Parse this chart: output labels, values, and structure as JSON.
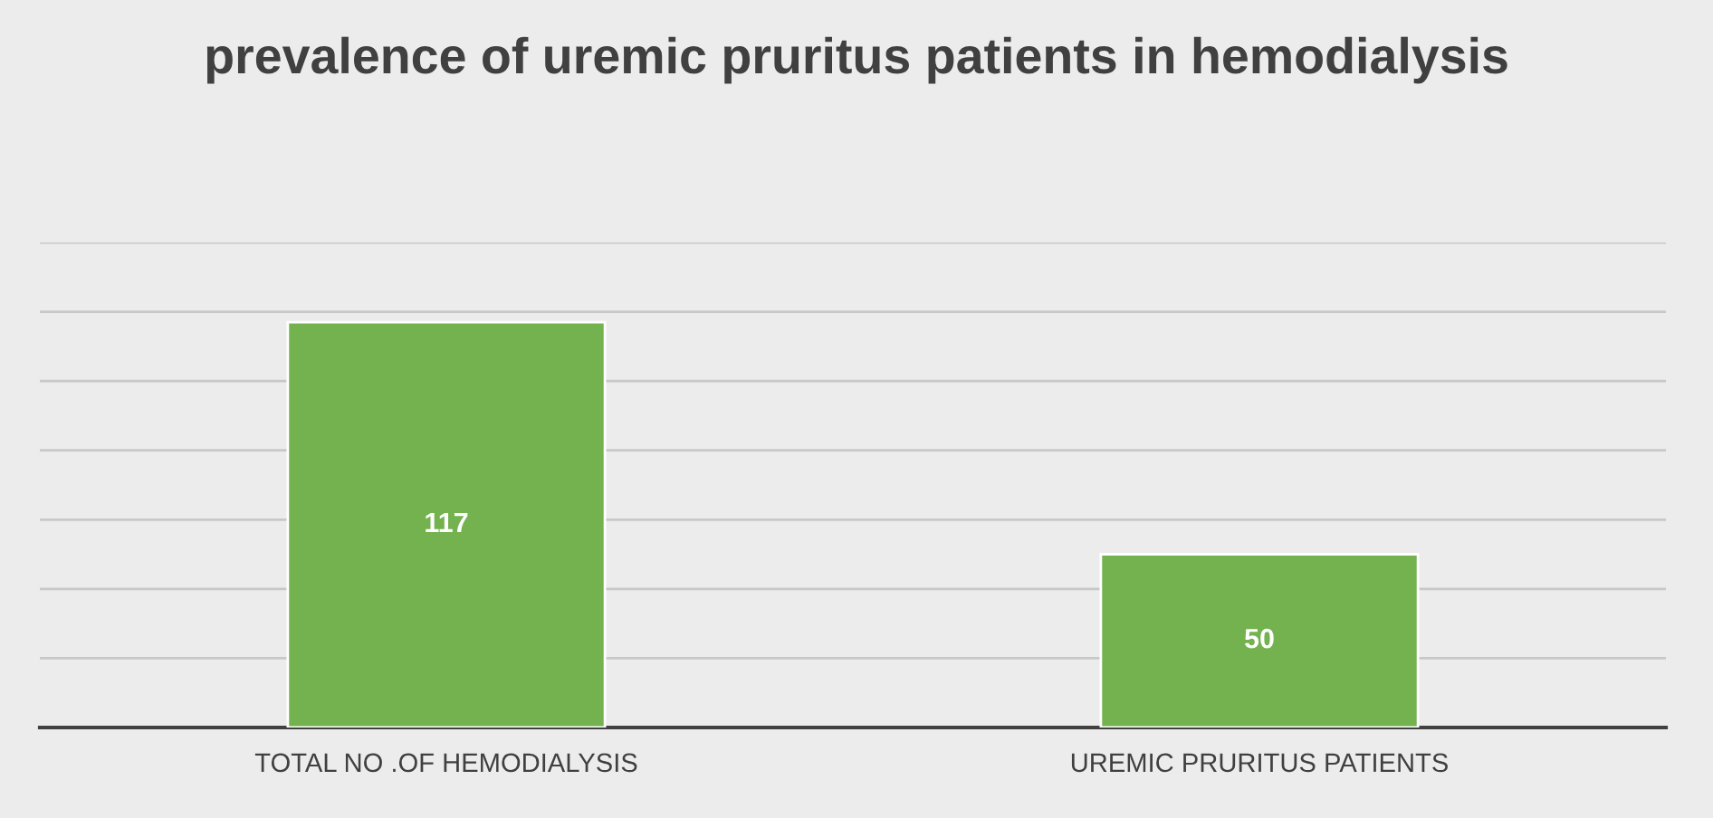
{
  "chart_data": {
    "type": "bar",
    "title": "prevalence of uremic pruritus patients in hemodialysis",
    "categories": [
      "TOTAL NO .OF HEMODIALYSIS",
      "UREMIC PRURITUS PATIENTS"
    ],
    "values": [
      117,
      50
    ],
    "color": "#74b24f",
    "data_labels": true,
    "ylim": [
      0,
      140
    ],
    "yticks": [
      {
        "value": 0,
        "label": null
      },
      {
        "value": 20,
        "label": null
      },
      {
        "value": 40,
        "label": null
      },
      {
        "value": 60,
        "label": null
      },
      {
        "value": 80,
        "label": null
      },
      {
        "value": 100,
        "label": null
      },
      {
        "value": 120,
        "label": null
      },
      {
        "value": 140,
        "label": null
      }
    ],
    "grid": "y",
    "tick_labels": "x"
  }
}
